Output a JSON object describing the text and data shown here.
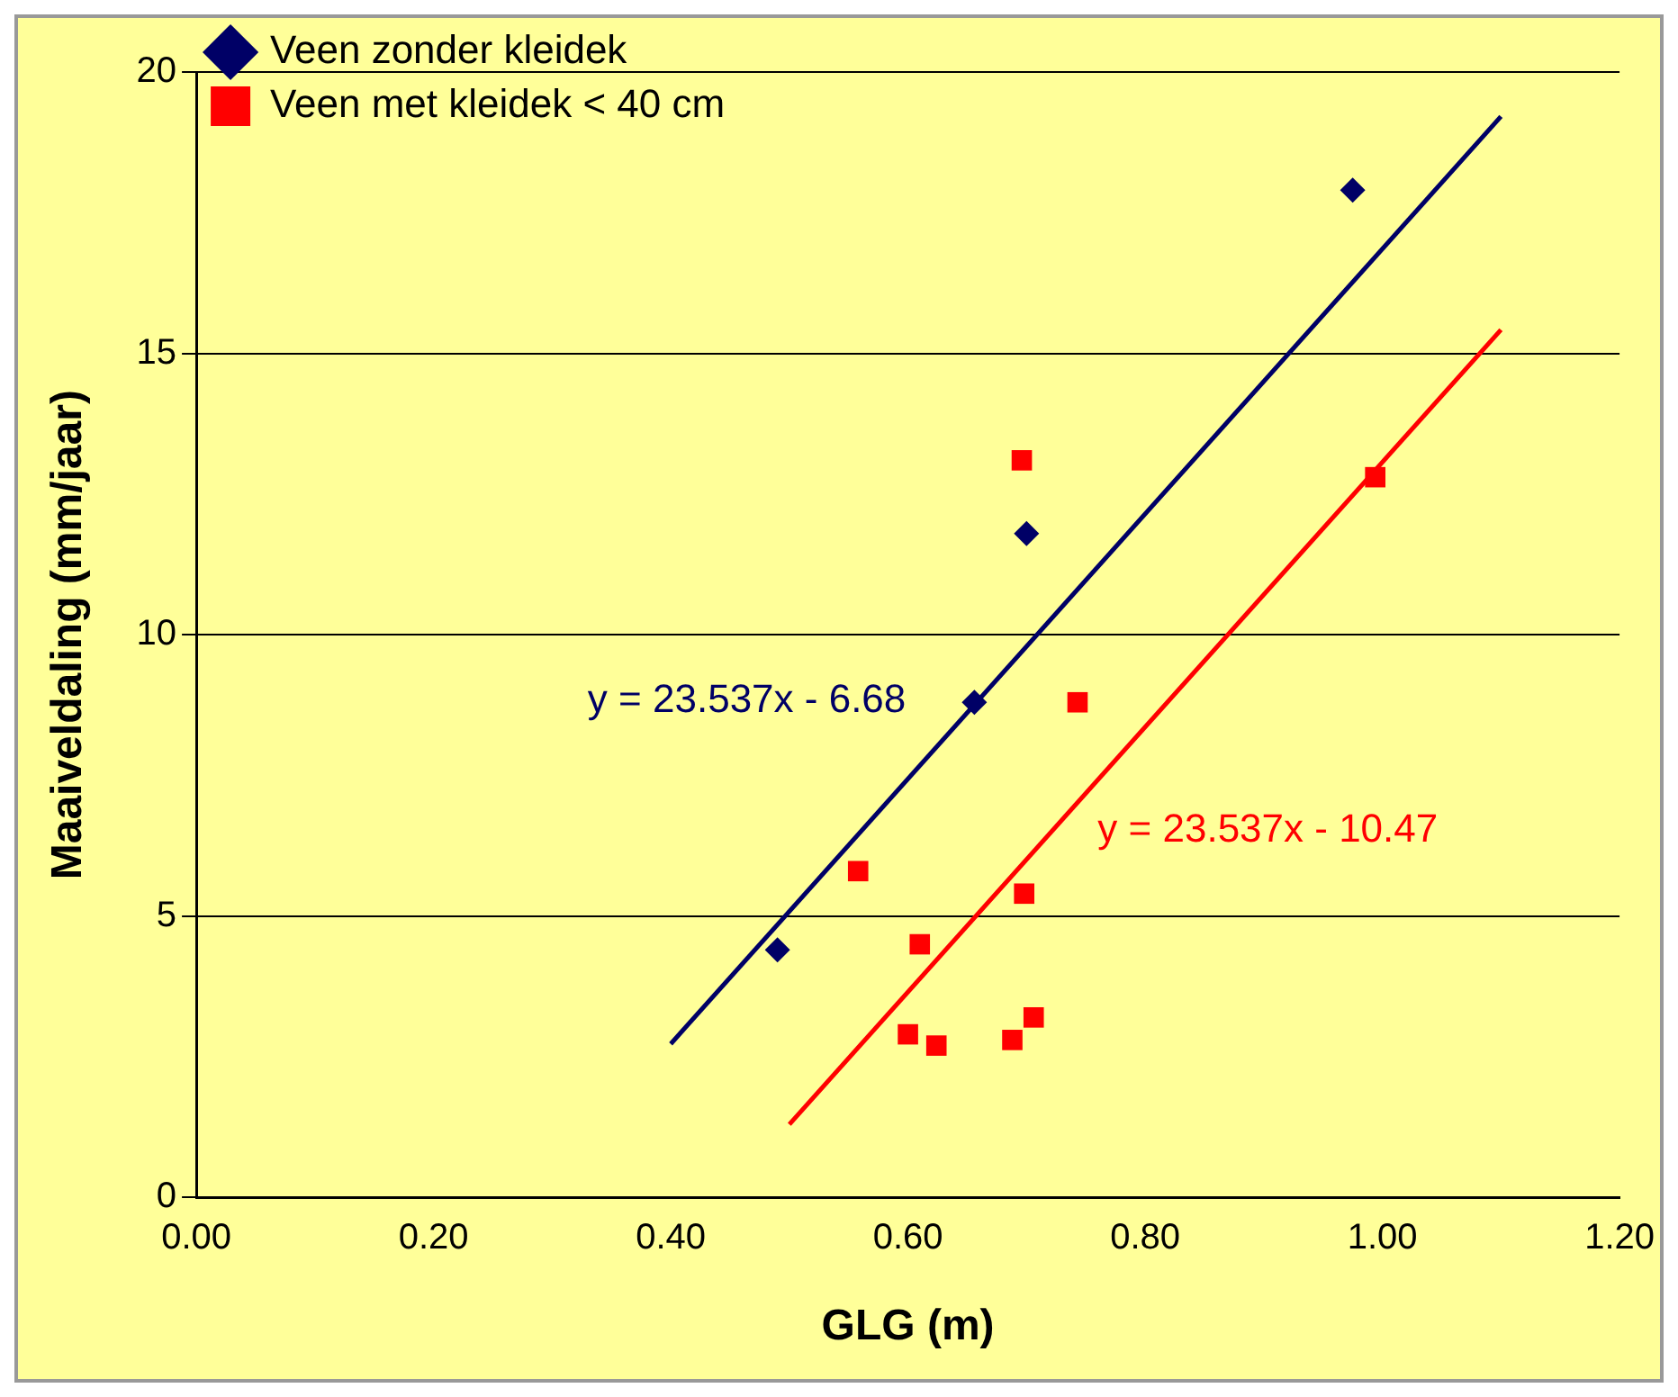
{
  "chart_data": {
    "type": "scatter",
    "xlabel": "GLG (m)",
    "ylabel": "Maaiveldaling (mm/jaar)",
    "xlim": [
      0,
      1.2
    ],
    "xticks": [
      {
        "value": 0,
        "label": "0.00"
      },
      {
        "value": 0.2,
        "label": "0.20"
      },
      {
        "value": 0.4,
        "label": "0.40"
      },
      {
        "value": 0.6,
        "label": "0.60"
      },
      {
        "value": 0.8,
        "label": "0.80"
      },
      {
        "value": 1,
        "label": "1.00"
      },
      {
        "value": 1.2,
        "label": "1.20"
      }
    ],
    "ylim": [
      0,
      20
    ],
    "yticks": [
      0,
      5,
      10,
      15,
      20
    ],
    "grid": "y",
    "legend": "top left",
    "series": [
      {
        "name": "Veen zonder kleidek",
        "color": "#000066",
        "marker": "diamond",
        "x": [
          0.49,
          0.656,
          0.7,
          0.975
        ],
        "values": [
          4.4,
          8.8,
          11.8,
          17.9
        ]
      },
      {
        "name": "Veen met kleidek < 40 cm",
        "color": "#ff0000",
        "marker": "square",
        "x": [
          0.558,
          0.61,
          0.6,
          0.624,
          0.696,
          0.698,
          0.688,
          0.706,
          0.743,
          0.994
        ],
        "values": [
          5.8,
          4.5,
          2.9,
          2.7,
          13.1,
          5.4,
          2.8,
          3.2,
          8.8,
          12.8
        ]
      },
      {
        "type": "line",
        "color": "#000066",
        "marker": "none",
        "x": [
          0.4,
          1.1
        ],
        "values": [
          2.73,
          19.21
        ]
      },
      {
        "type": "line",
        "color": "#ff0000",
        "marker": "none",
        "x": [
          0.5,
          1.1
        ],
        "values": [
          1.3,
          15.42
        ]
      }
    ],
    "annotations": [
      "y = 23.537x - 6.68",
      "y = 23.537x - 10.47"
    ]
  }
}
